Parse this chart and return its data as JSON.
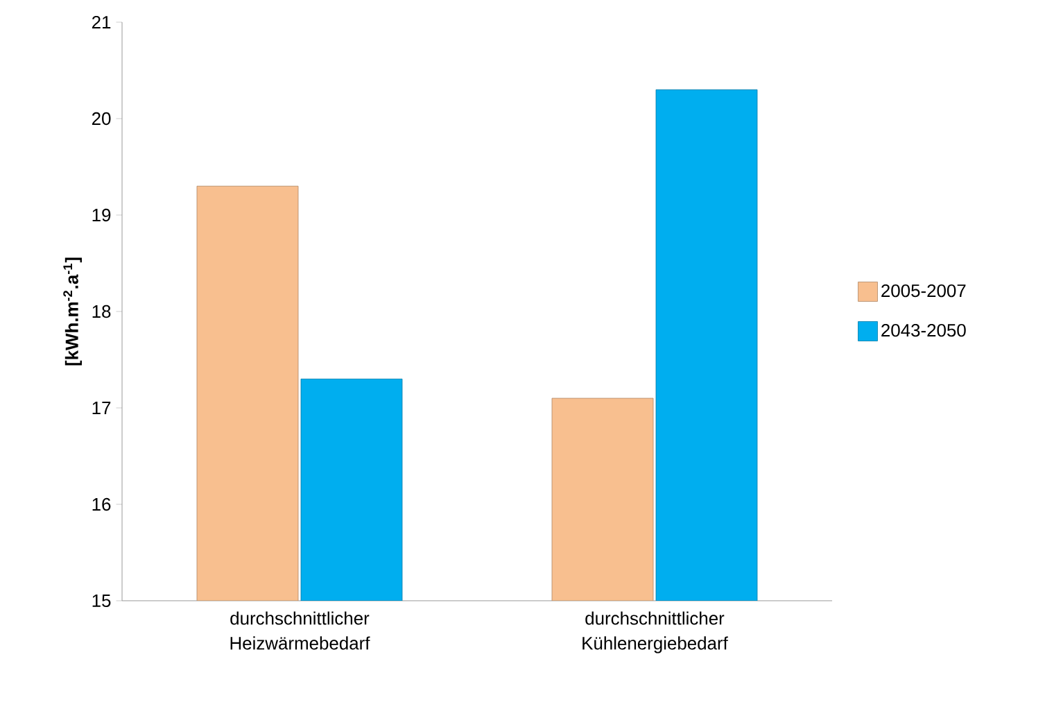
{
  "chart_data": {
    "type": "bar",
    "ylabel": "[kWh.m$^{-2}$.a$^{-1}$]",
    "categories": [
      "durchschnittlicher Heizwärmebedarf",
      "durchschnittlicher Kühlenergiebedarf"
    ],
    "series": [
      {
        "name": "2005-2007",
        "color": "#f8bf8f",
        "values": [
          19.3,
          17.1
        ]
      },
      {
        "name": "2043-2050",
        "color": "#00aeef",
        "values": [
          17.3,
          20.3
        ]
      }
    ],
    "ylim": [
      15,
      21
    ],
    "yticks": [
      15,
      16,
      17,
      18,
      19,
      20,
      21
    ],
    "grid": false,
    "legend": "right"
  }
}
